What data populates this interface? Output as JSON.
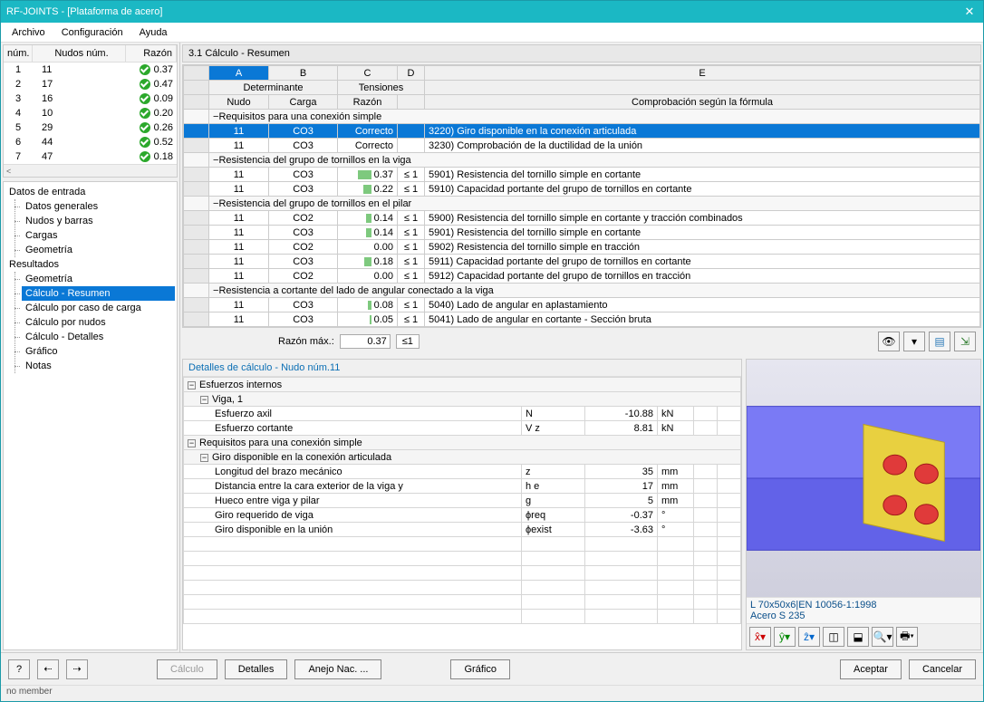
{
  "window": {
    "title": "RF-JOINTS - [Plataforma de acero]"
  },
  "menu": {
    "archivo": "Archivo",
    "config": "Configuración",
    "ayuda": "Ayuda"
  },
  "left_headers": {
    "num": "núm.",
    "nudos": "Nudos núm.",
    "razon": "Razón"
  },
  "left_rows": [
    {
      "n": "1",
      "nudo": "11",
      "r": "0.37"
    },
    {
      "n": "2",
      "nudo": "17",
      "r": "0.47"
    },
    {
      "n": "3",
      "nudo": "16",
      "r": "0.09"
    },
    {
      "n": "4",
      "nudo": "10",
      "r": "0.20"
    },
    {
      "n": "5",
      "nudo": "29",
      "r": "0.26"
    },
    {
      "n": "6",
      "nudo": "44",
      "r": "0.52"
    },
    {
      "n": "7",
      "nudo": "47",
      "r": "0.18"
    }
  ],
  "tree": {
    "datos": "Datos de entrada",
    "datos_items": [
      "Datos generales",
      "Nudos y barras",
      "Cargas",
      "Geometría"
    ],
    "res": "Resultados",
    "res_items": [
      "Geometría",
      "Cálculo - Resumen",
      "Cálculo por caso de carga",
      "Cálculo por nudos",
      "Cálculo - Detalles",
      "Gráfico",
      "Notas"
    ],
    "selected": "Cálculo - Resumen"
  },
  "section": "3.1 Cálculo - Resumen",
  "gcols": {
    "A": "A",
    "B": "B",
    "C": "C",
    "D": "D",
    "E": "E",
    "det": "Determinante",
    "ten": "Tensiones",
    "nudo": "Nudo",
    "carga": "Carga",
    "razon": "Razón",
    "formula": "Comprobación según la fórmula"
  },
  "grows": [
    {
      "grp": true,
      "text": "Requisitos para una conexión simple"
    },
    {
      "sel": true,
      "nudo": "11",
      "carga": "CO3",
      "razon": "Correcto",
      "desc": "3220) Giro disponible en la conexión articulada"
    },
    {
      "nudo": "11",
      "carga": "CO3",
      "razon": "Correcto",
      "desc": "3230) Comprobación de la ductilidad de la unión"
    },
    {
      "grp": true,
      "text": "Resistencia del grupo de tornillos en la viga"
    },
    {
      "nudo": "11",
      "carga": "CO3",
      "razon": "0.37",
      "le": "≤ 1",
      "bar": 37,
      "desc": "5901) Resistencia del tornillo simple en cortante"
    },
    {
      "nudo": "11",
      "carga": "CO3",
      "razon": "0.22",
      "le": "≤ 1",
      "bar": 22,
      "desc": "5910) Capacidad portante del grupo de tornillos en cortante"
    },
    {
      "grp": true,
      "text": "Resistencia del grupo de tornillos en el pilar"
    },
    {
      "nudo": "11",
      "carga": "CO2",
      "razon": "0.14",
      "le": "≤ 1",
      "bar": 14,
      "desc": "5900) Resistencia del tornillo simple en cortante y tracción combinados"
    },
    {
      "nudo": "11",
      "carga": "CO3",
      "razon": "0.14",
      "le": "≤ 1",
      "bar": 14,
      "desc": "5901) Resistencia del tornillo simple en cortante"
    },
    {
      "nudo": "11",
      "carga": "CO2",
      "razon": "0.00",
      "le": "≤ 1",
      "bar": 0,
      "desc": "5902) Resistencia del tornillo simple en tracción"
    },
    {
      "nudo": "11",
      "carga": "CO3",
      "razon": "0.18",
      "le": "≤ 1",
      "bar": 18,
      "desc": "5911) Capacidad portante del grupo de tornillos en cortante"
    },
    {
      "nudo": "11",
      "carga": "CO2",
      "razon": "0.00",
      "le": "≤ 1",
      "bar": 0,
      "desc": "5912) Capacidad portante del grupo de tornillos en tracción"
    },
    {
      "grp": true,
      "text": "Resistencia a cortante del lado de angular conectado a la viga"
    },
    {
      "nudo": "11",
      "carga": "CO3",
      "razon": "0.08",
      "le": "≤ 1",
      "bar": 8,
      "desc": "5040) Lado de angular en aplastamiento"
    },
    {
      "nudo": "11",
      "carga": "CO3",
      "razon": "0.05",
      "le": "≤ 1",
      "bar": 5,
      "desc": "5041) Lado de angular en cortante - Sección bruta"
    }
  ],
  "maxrow": {
    "label": "Razón máx.:",
    "value": "0.37",
    "le": "≤1"
  },
  "details": {
    "title": "Detalles de cálculo - Nudo núm.11",
    "rows": [
      {
        "grp": 1,
        "l": "Esfuerzos internos"
      },
      {
        "grp": 2,
        "l": "Viga, 1"
      },
      {
        "ind": 3,
        "l": "Esfuerzo axil",
        "s": "N",
        "v": "-10.88",
        "u": "kN"
      },
      {
        "ind": 3,
        "l": "Esfuerzo cortante",
        "s": "V z",
        "v": "8.81",
        "u": "kN"
      },
      {
        "grp": 1,
        "l": "Requisitos para una conexión simple"
      },
      {
        "grp": 2,
        "l": "Giro disponible en la conexión articulada"
      },
      {
        "ind": 3,
        "l": "Longitud del brazo mecánico",
        "s": "z",
        "v": "35",
        "u": "mm"
      },
      {
        "ind": 3,
        "l": "Distancia entre la cara exterior de la viga y",
        "s": "h e",
        "v": "17",
        "u": "mm"
      },
      {
        "ind": 3,
        "l": "Hueco entre viga y pilar",
        "s": "g",
        "v": "5",
        "u": "mm"
      },
      {
        "ind": 3,
        "l": "Giro requerido de viga",
        "s": "ϕreq",
        "v": "-0.37",
        "u": "°"
      },
      {
        "ind": 3,
        "l": "Giro disponible en la unión",
        "s": "ϕexist",
        "v": "-3.63",
        "u": "°"
      }
    ]
  },
  "preview": {
    "line1": "L 70x50x6|EN 10056-1:1998",
    "line2": "Acero S 235"
  },
  "footer": {
    "calc": "Cálculo",
    "det": "Detalles",
    "anejo": "Anejo Nac. ...",
    "graf": "Gráfico",
    "ok": "Aceptar",
    "cancel": "Cancelar"
  },
  "status": "no member",
  "colors": {
    "brand": "#1bb8c4",
    "sel": "#0a78d6",
    "ok": "#2ba82b",
    "beam": "#6b6bf0",
    "plate": "#e8d040",
    "bolt": "#e03a3a"
  }
}
